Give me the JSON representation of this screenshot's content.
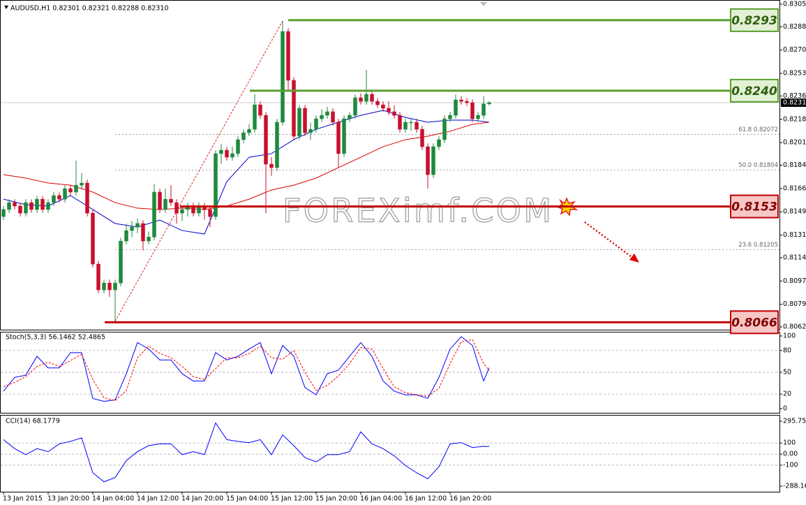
{
  "chart_data": [
    {
      "type": "candlestick",
      "title": "AUDUSD,H1 0.82301 0.82321 0.82288 0.82310",
      "watermark": "FOREXimf.COM",
      "categories": [
        "13 Jan 2015",
        null,
        null,
        null,
        null,
        null,
        null,
        null,
        "13 Jan 20:00",
        null,
        null,
        null,
        null,
        null,
        null,
        null,
        "14 Jan 04:00",
        null,
        null,
        null,
        null,
        null,
        null,
        null,
        "14 Jan 12:00",
        null,
        null,
        null,
        null,
        null,
        null,
        null,
        "14 Jan 20:00",
        null,
        null,
        null,
        null,
        null,
        null,
        null,
        "15 Jan 04:00",
        null,
        null,
        null,
        null,
        null,
        null,
        null,
        "15 Jan 12:00",
        null,
        null,
        null,
        null,
        null,
        null,
        null,
        "15 Jan 20:00",
        null,
        null,
        null,
        null,
        null,
        null,
        null,
        "16 Jan 04:00",
        null,
        null,
        null,
        null,
        null,
        null,
        null,
        "16 Jan 12:00",
        null,
        null,
        null,
        null,
        null,
        null,
        null,
        "16 Jan 20:00",
        null,
        null,
        null,
        null,
        null,
        null,
        null
      ],
      "open": [
        0.81454,
        0.81507,
        0.81559,
        0.81533,
        0.8148,
        0.81559,
        0.81507,
        0.81585,
        0.81507,
        0.81559,
        0.81612,
        0.81585,
        0.81664,
        0.81638,
        0.8169,
        0.81706,
        0.8148,
        0.81097,
        0.80903,
        0.80955,
        0.80903,
        0.80955,
        0.8127,
        0.81349,
        0.81375,
        0.81402,
        0.8127,
        0.813,
        0.81638,
        0.81507,
        0.81585,
        0.81559,
        0.8148,
        0.81507,
        0.81533,
        0.8148,
        0.81533,
        0.81507,
        0.81454,
        0.81927,
        0.81953,
        0.819,
        0.81927,
        0.82032,
        0.82084,
        0.8211,
        0.82294,
        0.82215,
        0.81848,
        0.81822,
        0.82163,
        0.82845,
        0.82478,
        0.82058,
        0.82268,
        0.82084,
        0.8211,
        0.82189,
        0.82215,
        0.82242,
        0.82163,
        0.81927,
        0.82189,
        0.82215,
        0.82347,
        0.8232,
        0.82373,
        0.8232,
        0.82294,
        0.82268,
        0.82242,
        0.82215,
        0.8211,
        0.82163,
        0.82163,
        0.8211,
        0.81979,
        0.81769,
        0.81979,
        0.82032,
        0.82189,
        0.82215,
        0.82331,
        0.8232,
        0.8231,
        0.82189,
        0.82215,
        0.82301
      ],
      "high": [
        0.81532,
        0.81584,
        0.81584,
        0.81558,
        0.81584,
        0.81584,
        0.8161,
        0.8161,
        0.81584,
        0.81637,
        0.81637,
        0.81689,
        0.81689,
        0.81874,
        0.8178,
        0.81731,
        0.81505,
        0.81122,
        0.8098,
        0.8098,
        0.8098,
        0.81295,
        0.814,
        0.8142,
        0.8144,
        0.81427,
        0.8134,
        0.817,
        0.81663,
        0.81664,
        0.8169,
        0.81584,
        0.81532,
        0.81558,
        0.81558,
        0.81558,
        0.81558,
        0.81532,
        0.81952,
        0.82,
        0.81978,
        0.8198,
        0.82057,
        0.82109,
        0.8215,
        0.82373,
        0.82319,
        0.8224,
        0.819,
        0.82188,
        0.82924,
        0.8287,
        0.82503,
        0.82293,
        0.82293,
        0.8216,
        0.82214,
        0.8226,
        0.8228,
        0.82267,
        0.82188,
        0.82214,
        0.8224,
        0.82372,
        0.8238,
        0.82557,
        0.82398,
        0.82345,
        0.82319,
        0.8232,
        0.8229,
        0.8224,
        0.82188,
        0.82188,
        0.82188,
        0.82135,
        0.82004,
        0.82004,
        0.82057,
        0.82214,
        0.8224,
        0.8237,
        0.8236,
        0.82345,
        0.82335,
        0.8224,
        0.8236,
        0.82321
      ],
      "low": [
        0.81429,
        0.81482,
        0.81508,
        0.81455,
        0.81455,
        0.81482,
        0.81482,
        0.81482,
        0.81482,
        0.81534,
        0.8156,
        0.8156,
        0.81613,
        0.81613,
        0.81665,
        0.81455,
        0.81072,
        0.80878,
        0.80878,
        0.8085,
        0.80667,
        0.8093,
        0.81245,
        0.813,
        0.8133,
        0.812,
        0.81245,
        0.81275,
        0.81482,
        0.81482,
        0.81534,
        0.814,
        0.8142,
        0.81455,
        0.81455,
        0.81455,
        0.8143,
        0.81375,
        0.81429,
        0.8185,
        0.81875,
        0.81875,
        0.81902,
        0.82007,
        0.82059,
        0.82085,
        0.8219,
        0.8148,
        0.8176,
        0.81797,
        0.82138,
        0.824,
        0.82033,
        0.82033,
        0.82059,
        0.8203,
        0.82085,
        0.82164,
        0.8219,
        0.82138,
        0.81822,
        0.81902,
        0.82164,
        0.8219,
        0.82295,
        0.82295,
        0.82295,
        0.82269,
        0.82243,
        0.82217,
        0.8219,
        0.82085,
        0.82085,
        0.821,
        0.82085,
        0.81954,
        0.81664,
        0.81744,
        0.81954,
        0.82007,
        0.82164,
        0.8219,
        0.82295,
        0.82285,
        0.82164,
        0.82164,
        0.8219,
        0.82288
      ],
      "close": [
        0.81507,
        0.81559,
        0.81533,
        0.8148,
        0.81559,
        0.81507,
        0.81585,
        0.81507,
        0.81559,
        0.81612,
        0.81585,
        0.81664,
        0.81638,
        0.8169,
        0.81706,
        0.8148,
        0.81097,
        0.80903,
        0.80955,
        0.80903,
        0.80955,
        0.8127,
        0.81349,
        0.81375,
        0.81402,
        0.8127,
        0.813,
        0.81638,
        0.81507,
        0.81585,
        0.81559,
        0.8148,
        0.81507,
        0.81533,
        0.8148,
        0.81533,
        0.81507,
        0.81454,
        0.81927,
        0.81953,
        0.819,
        0.81927,
        0.82032,
        0.82084,
        0.8211,
        0.82294,
        0.82215,
        0.81848,
        0.81822,
        0.82163,
        0.82845,
        0.82478,
        0.82058,
        0.82268,
        0.82084,
        0.8211,
        0.82189,
        0.82215,
        0.82242,
        0.82163,
        0.81927,
        0.82189,
        0.82215,
        0.82347,
        0.8232,
        0.82373,
        0.8232,
        0.82294,
        0.82268,
        0.82242,
        0.82215,
        0.8211,
        0.82163,
        0.82163,
        0.8211,
        0.81979,
        0.81769,
        0.81979,
        0.82032,
        0.82189,
        0.82215,
        0.82331,
        0.8232,
        0.8231,
        0.82189,
        0.82215,
        0.82301,
        0.8231
      ],
      "up_color": "#1e8a3c",
      "down_color": "#c8102e",
      "moving_averages": [
        {
          "color": "#0000cc",
          "x": [
            0,
            4,
            8,
            12,
            16,
            20,
            24,
            28,
            32,
            36,
            40,
            44,
            48,
            52,
            56,
            60,
            64,
            68,
            72,
            76,
            80,
            84,
            87
          ],
          "values": [
            0.81585,
            0.81543,
            0.81533,
            0.81612,
            0.81507,
            0.81402,
            0.81375,
            0.81428,
            0.81349,
            0.81323,
            0.81717,
            0.819,
            0.81927,
            0.82032,
            0.8211,
            0.82163,
            0.82215,
            0.82252,
            0.82199,
            0.82163,
            0.82179,
            0.82179,
            0.82163
          ]
        },
        {
          "color": "#dd0000",
          "x": [
            0,
            4,
            8,
            12,
            16,
            20,
            24,
            28,
            32,
            36,
            40,
            44,
            48,
            52,
            56,
            60,
            64,
            68,
            72,
            76,
            80,
            84,
            87
          ],
          "values": [
            0.81769,
            0.81743,
            0.81706,
            0.8169,
            0.81638,
            0.81559,
            0.81517,
            0.81507,
            0.81517,
            0.81507,
            0.81533,
            0.81585,
            0.81654,
            0.8169,
            0.81743,
            0.81822,
            0.819,
            0.81979,
            0.82032,
            0.82058,
            0.82095,
            0.82147,
            0.82163
          ]
        }
      ],
      "trendline": {
        "color": "#e02020",
        "x": [
          20,
          50
        ],
        "values": [
          0.80667,
          0.82924
        ]
      },
      "levels": [
        {
          "value": 0.8293,
          "color": "#5a9e2f",
          "fill": "#e2f0d4"
        },
        {
          "value": 0.824,
          "label": "0.8240",
          "color": "#5a9e2f",
          "fill": "#e2f0d4"
        },
        {
          "value": 0.8153,
          "color": "#c00000",
          "fill": "#f7c6c6"
        },
        {
          "value": 0.8066,
          "color": "#c00000",
          "fill": "#f7c6c6"
        }
      ],
      "fibs": [
        {
          "value": 0.82072,
          "label": "61.8 0.82072"
        },
        {
          "value": 0.81804,
          "label": "50.0 0.81804"
        },
        {
          "value": 0.81205,
          "label": "23.6 0.81205"
        }
      ],
      "last_price": {
        "value": 0.8231,
        "label": "0.82310"
      },
      "ylim": [
        0.80625,
        0.8305
      ],
      "yticks": [
        {
          "value": 0.8305,
          "label": "0.83050"
        },
        {
          "value": 0.8288,
          "label": "0.82880"
        },
        0.82705,
        {
          "value": 0.8253,
          "label": "0.82530"
        },
        {
          "value": 0.8236,
          "label": "0.82360"
        },
        0.82185,
        {
          "value": 0.8201,
          "label": "0.82010"
        },
        {
          "value": 0.8184,
          "label": "0.81840"
        },
        0.81665,
        {
          "value": 0.8149,
          "label": "0.81490"
        },
        0.81315,
        0.81145,
        {
          "value": 0.8097,
          "label": "0.80970"
        },
        0.80795,
        0.80625
      ],
      "grid": false
    },
    {
      "type": "line",
      "title": "Stoch(5,3,3) 56.1462 52.4865",
      "x": [
        0,
        2,
        4,
        6,
        8,
        10,
        12,
        14,
        16,
        18,
        20,
        22,
        24,
        26,
        28,
        30,
        32,
        34,
        36,
        38,
        40,
        42,
        44,
        46,
        48,
        50,
        52,
        54,
        56,
        58,
        60,
        62,
        64,
        66,
        68,
        70,
        72,
        74,
        76,
        78,
        80,
        82,
        84,
        86,
        87
      ],
      "series": [
        {
          "color": "#0000ff",
          "values": [
            24,
            43,
            46,
            72,
            56,
            56,
            77,
            77,
            14,
            10,
            12,
            48,
            91,
            82,
            67,
            67,
            48,
            38,
            38,
            77,
            67,
            72,
            82,
            91,
            48,
            87,
            72,
            29,
            19,
            48,
            53,
            72,
            91,
            72,
            38,
            24,
            19,
            19,
            14,
            43,
            82,
            99,
            87,
            38,
            56.1462
          ]
        },
        {
          "color": "#ff0000",
          "dashed": true,
          "values": [
            30,
            36,
            44,
            58,
            64,
            58,
            66,
            75,
            40,
            15,
            11,
            25,
            70,
            86,
            76,
            70,
            58,
            44,
            40,
            55,
            70,
            70,
            76,
            86,
            70,
            68,
            80,
            50,
            25,
            32,
            45,
            62,
            84,
            82,
            55,
            30,
            22,
            19,
            17,
            28,
            62,
            92,
            95,
            62,
            52.4865
          ]
        }
      ],
      "ylim": [
        0,
        100
      ],
      "yticks": [
        100,
        80,
        50,
        20,
        0
      ],
      "grid": true
    },
    {
      "type": "line",
      "title": "CCI(14) 68.1779",
      "x": [
        0,
        2,
        4,
        6,
        8,
        10,
        12,
        14,
        16,
        18,
        20,
        22,
        24,
        26,
        28,
        30,
        32,
        34,
        36,
        38,
        40,
        42,
        44,
        46,
        48,
        50,
        52,
        54,
        56,
        58,
        60,
        62,
        64,
        66,
        68,
        70,
        72,
        74,
        76,
        78,
        80,
        82,
        84,
        86,
        87
      ],
      "series": [
        {
          "color": "#0000ff",
          "values": [
            130,
            49,
            -5,
            49,
            22,
            92,
            114,
            146,
            -168,
            -249,
            -211,
            -59,
            22,
            76,
            92,
            92,
            -5,
            22,
            -5,
            280,
            130,
            114,
            103,
            130,
            -5,
            173,
            76,
            -32,
            -70,
            -5,
            -5,
            22,
            200,
            92,
            49,
            -16,
            -103,
            -168,
            -222,
            -114,
            92,
            103,
            59,
            70,
            68.1779
          ]
        }
      ],
      "ylim": [
        -288.165,
        295.752
      ],
      "yticks": [
        295.752,
        100,
        {
          "value": 0,
          "label": "0.00"
        },
        -100,
        -288.165
      ],
      "grid": true
    }
  ]
}
